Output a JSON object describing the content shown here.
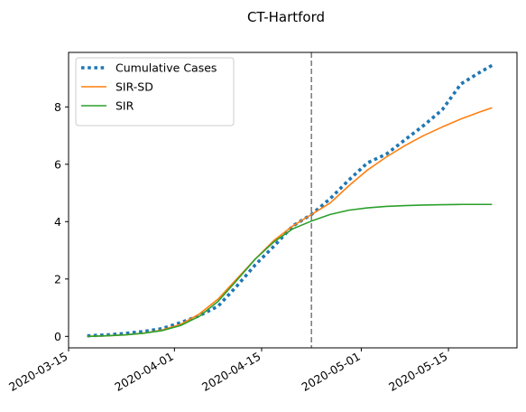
{
  "chart_data": {
    "type": "line",
    "title": "CT-Hartford",
    "xlabel": "",
    "ylabel": "",
    "x_axis_type": "date",
    "xlim": [
      "2020-03-15",
      "2020-05-26"
    ],
    "ylim": [
      -0.4,
      9.9
    ],
    "x_ticks": [
      "2020-03-15",
      "2020-04-01",
      "2020-04-15",
      "2020-05-01",
      "2020-05-15"
    ],
    "y_ticks": [
      0,
      2,
      4,
      6,
      8
    ],
    "grid": false,
    "legend_position": "top-left",
    "vertical_line": {
      "x": "2020-04-23",
      "style": "dashed",
      "color": "#808080"
    },
    "series": [
      {
        "name": "Cumulative Cases",
        "style": "dotted",
        "color": "#1f77b4",
        "points": [
          [
            "2020-03-18",
            0.02
          ],
          [
            "2020-03-21",
            0.05
          ],
          [
            "2020-03-24",
            0.1
          ],
          [
            "2020-03-27",
            0.17
          ],
          [
            "2020-03-30",
            0.27
          ],
          [
            "2020-04-02",
            0.48
          ],
          [
            "2020-04-05",
            0.72
          ],
          [
            "2020-04-08",
            1.05
          ],
          [
            "2020-04-11",
            1.75
          ],
          [
            "2020-04-14",
            2.5
          ],
          [
            "2020-04-17",
            3.15
          ],
          [
            "2020-04-20",
            3.85
          ],
          [
            "2020-04-23",
            4.25
          ],
          [
            "2020-04-26",
            4.8
          ],
          [
            "2020-04-29",
            5.45
          ],
          [
            "2020-05-02",
            6.05
          ],
          [
            "2020-05-05",
            6.35
          ],
          [
            "2020-05-08",
            6.85
          ],
          [
            "2020-05-11",
            7.35
          ],
          [
            "2020-05-14",
            7.9
          ],
          [
            "2020-05-17",
            8.8
          ],
          [
            "2020-05-20",
            9.2
          ],
          [
            "2020-05-22",
            9.45
          ]
        ]
      },
      {
        "name": "SIR-SD",
        "style": "solid",
        "color": "#ff7f0e",
        "points": [
          [
            "2020-03-18",
            0.0
          ],
          [
            "2020-03-21",
            0.02
          ],
          [
            "2020-03-24",
            0.05
          ],
          [
            "2020-03-27",
            0.11
          ],
          [
            "2020-03-30",
            0.22
          ],
          [
            "2020-04-02",
            0.42
          ],
          [
            "2020-04-05",
            0.78
          ],
          [
            "2020-04-08",
            1.3
          ],
          [
            "2020-04-11",
            2.0
          ],
          [
            "2020-04-14",
            2.7
          ],
          [
            "2020-04-17",
            3.35
          ],
          [
            "2020-04-20",
            3.85
          ],
          [
            "2020-04-23",
            4.25
          ],
          [
            "2020-04-26",
            4.65
          ],
          [
            "2020-04-29",
            5.25
          ],
          [
            "2020-05-02",
            5.8
          ],
          [
            "2020-05-05",
            6.25
          ],
          [
            "2020-05-08",
            6.65
          ],
          [
            "2020-05-11",
            7.0
          ],
          [
            "2020-05-14",
            7.3
          ],
          [
            "2020-05-17",
            7.58
          ],
          [
            "2020-05-20",
            7.82
          ],
          [
            "2020-05-22",
            7.97
          ]
        ]
      },
      {
        "name": "SIR",
        "style": "solid",
        "color": "#2ca02c",
        "points": [
          [
            "2020-03-18",
            0.0
          ],
          [
            "2020-03-21",
            0.02
          ],
          [
            "2020-03-24",
            0.05
          ],
          [
            "2020-03-27",
            0.11
          ],
          [
            "2020-03-30",
            0.2
          ],
          [
            "2020-04-02",
            0.38
          ],
          [
            "2020-04-05",
            0.7
          ],
          [
            "2020-04-08",
            1.22
          ],
          [
            "2020-04-11",
            1.95
          ],
          [
            "2020-04-14",
            2.7
          ],
          [
            "2020-04-17",
            3.3
          ],
          [
            "2020-04-20",
            3.75
          ],
          [
            "2020-04-23",
            4.02
          ],
          [
            "2020-04-26",
            4.25
          ],
          [
            "2020-04-29",
            4.4
          ],
          [
            "2020-05-02",
            4.48
          ],
          [
            "2020-05-05",
            4.53
          ],
          [
            "2020-05-08",
            4.56
          ],
          [
            "2020-05-11",
            4.58
          ],
          [
            "2020-05-14",
            4.59
          ],
          [
            "2020-05-17",
            4.6
          ],
          [
            "2020-05-20",
            4.6
          ],
          [
            "2020-05-22",
            4.6
          ]
        ]
      }
    ]
  }
}
